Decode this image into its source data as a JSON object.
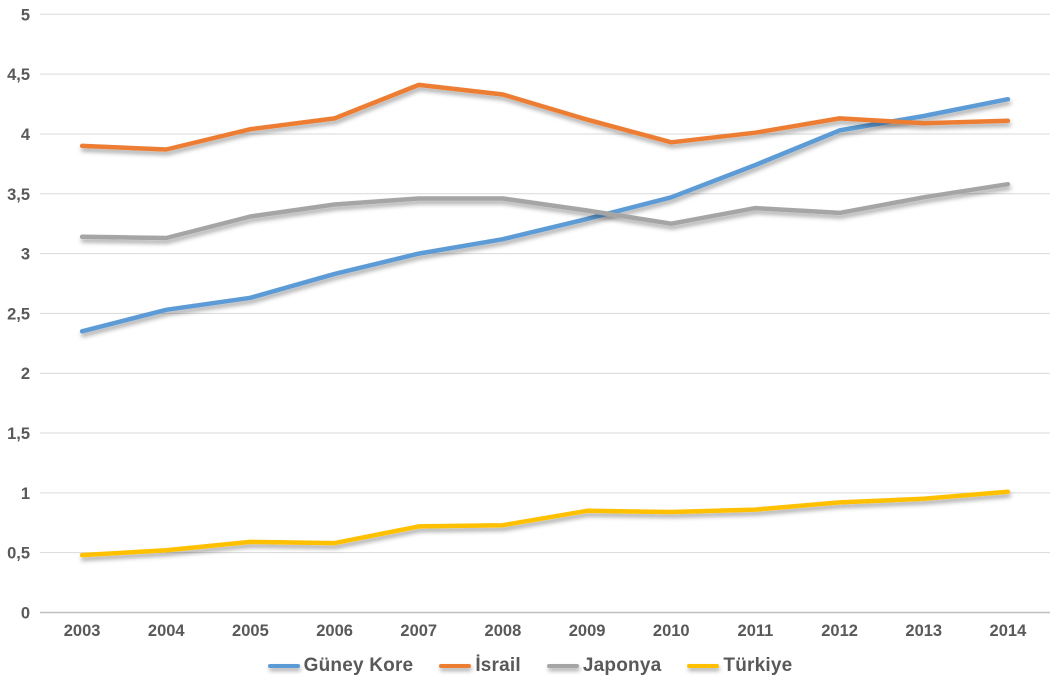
{
  "chart_data": {
    "type": "line",
    "title": "",
    "xlabel": "",
    "ylabel": "",
    "categories": [
      "2003",
      "2004",
      "2005",
      "2006",
      "2007",
      "2008",
      "2009",
      "2010",
      "2011",
      "2012",
      "2013",
      "2014"
    ],
    "series": [
      {
        "name": "Güney Kore",
        "color": "#5B9BD5",
        "values": [
          2.35,
          2.53,
          2.63,
          2.83,
          3.0,
          3.12,
          3.29,
          3.47,
          3.74,
          4.03,
          4.15,
          4.29
        ]
      },
      {
        "name": "İsrail",
        "color": "#ED7D31",
        "values": [
          3.9,
          3.87,
          4.04,
          4.13,
          4.41,
          4.33,
          4.12,
          3.93,
          4.01,
          4.13,
          4.09,
          4.11
        ]
      },
      {
        "name": "Japonya",
        "color": "#A5A5A5",
        "values": [
          3.14,
          3.13,
          3.31,
          3.41,
          3.46,
          3.46,
          3.36,
          3.25,
          3.38,
          3.34,
          3.47,
          3.58
        ]
      },
      {
        "name": "Türkiye",
        "color": "#FFC000",
        "values": [
          0.48,
          0.52,
          0.59,
          0.58,
          0.72,
          0.73,
          0.85,
          0.84,
          0.86,
          0.92,
          0.95,
          1.01
        ]
      }
    ],
    "ylim": [
      0,
      5
    ],
    "ytick_step": 0.5,
    "ytick_labels": [
      "0",
      "0,5",
      "1",
      "1,5",
      "2",
      "2,5",
      "3",
      "3,5",
      "4",
      "4,5",
      "5"
    ],
    "grid": true,
    "legend_position": "bottom",
    "gridline_color": "#D9D9D9",
    "axis_line_color": "#BFBFBF",
    "tick_label_color": "#595959"
  }
}
